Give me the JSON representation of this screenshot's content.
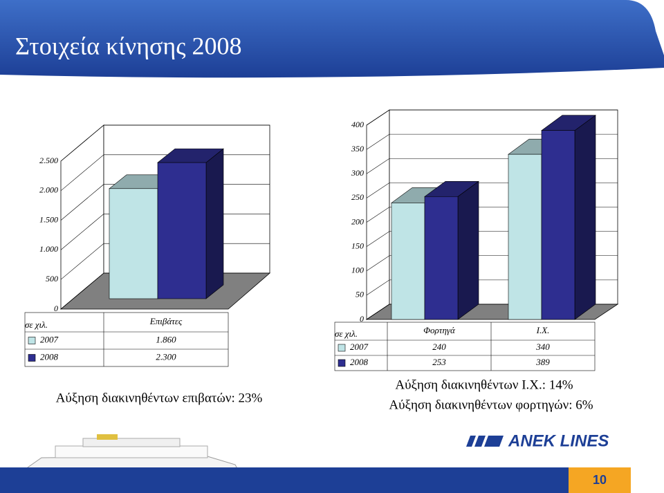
{
  "title": "Στοιχεία κίνησης 2008",
  "chart_data": [
    {
      "type": "bar",
      "y_label": "σε χιλ.",
      "categories": [
        "Επιβάτες"
      ],
      "series": [
        {
          "name": "2007",
          "color": "#bfe4e6",
          "values": [
            1860
          ],
          "value_labels": [
            "1.860"
          ]
        },
        {
          "name": "2008",
          "color": "#2e2e90",
          "values": [
            2300
          ],
          "value_labels": [
            "2.300"
          ]
        }
      ],
      "ylim": [
        0,
        2500
      ],
      "yticks": [
        0,
        500,
        {
          "value": 1000,
          "label": "1.000"
        },
        {
          "value": 1500,
          "label": "1.500"
        },
        {
          "value": 2000,
          "label": "2.000"
        },
        {
          "value": 2500,
          "label": "2.500"
        }
      ],
      "grid": true,
      "annotations": [
        "Αύξηση διακινηθέντων επιβατών: 23%"
      ]
    },
    {
      "type": "bar",
      "y_label": "σε χιλ.",
      "categories": [
        "Φορτηγά",
        "Ι.Χ."
      ],
      "series": [
        {
          "name": "2007",
          "color": "#bfe4e6",
          "values": [
            240,
            340
          ]
        },
        {
          "name": "2008",
          "color": "#2e2e90",
          "values": [
            253,
            389
          ]
        }
      ],
      "ylim": [
        0,
        400
      ],
      "yticks": [
        0,
        50,
        100,
        150,
        200,
        250,
        300,
        350,
        400
      ],
      "grid": true,
      "annotations": [
        "Αύξηση διακινηθέντων Ι.Χ.: 14%",
        "Αύξηση διακινηθέντων φορτηγών: 6%"
      ]
    }
  ],
  "logo": "ANEK LINES",
  "page_number": "10"
}
